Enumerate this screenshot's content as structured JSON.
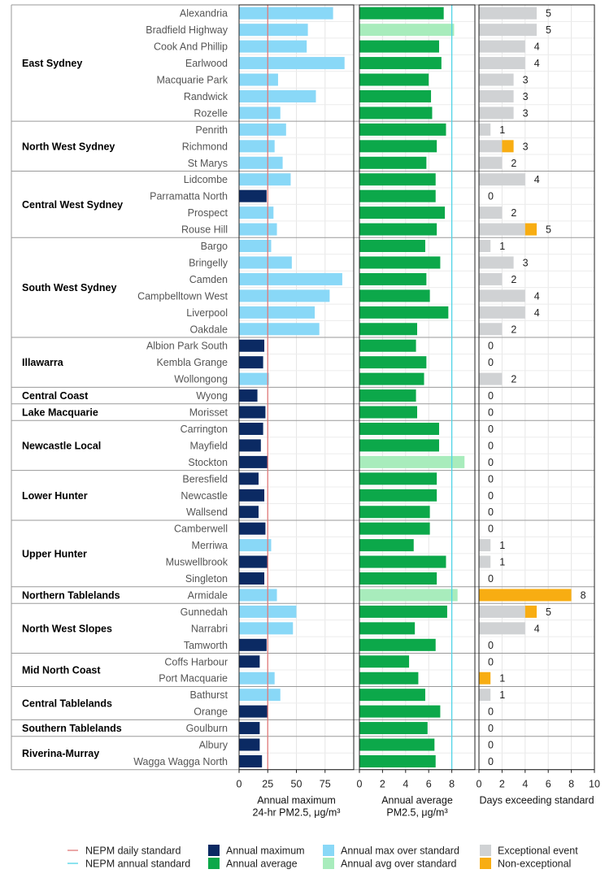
{
  "chart_data": {
    "type": "bar",
    "colors": {
      "annual_max": "#0b2a63",
      "annual_max_over": "#89d8f7",
      "annual_avg": "#0ca84a",
      "annual_avg_over": "#a8ecbc",
      "exceptional": "#d0d2d4",
      "non_exceptional": "#f8ad12",
      "daily_std_line": "#e07a7a",
      "annual_std_line": "#4fd4e6"
    },
    "regions": [
      {
        "name": "East Sydney",
        "stations": [
          "Alexandria",
          "Bradfield Highway",
          "Cook And Phillip",
          "Earlwood",
          "Macquarie Park",
          "Randwick",
          "Rozelle"
        ]
      },
      {
        "name": "North West Sydney",
        "stations": [
          "Penrith",
          "Richmond",
          "St Marys"
        ]
      },
      {
        "name": "Central West Sydney",
        "stations": [
          "Lidcombe",
          "Parramatta North",
          "Prospect",
          "Rouse Hill"
        ]
      },
      {
        "name": "South West Sydney",
        "stations": [
          "Bargo",
          "Bringelly",
          "Camden",
          "Campbelltown West",
          "Liverpool",
          "Oakdale"
        ]
      },
      {
        "name": "Illawarra",
        "stations": [
          "Albion Park South",
          "Kembla Grange",
          "Wollongong"
        ]
      },
      {
        "name": "Central Coast",
        "stations": [
          "Wyong"
        ]
      },
      {
        "name": "Lake Macquarie",
        "stations": [
          "Morisset"
        ]
      },
      {
        "name": "Newcastle Local",
        "stations": [
          "Carrington",
          "Mayfield",
          "Stockton"
        ]
      },
      {
        "name": "Lower Hunter",
        "stations": [
          "Beresfield",
          "Newcastle",
          "Wallsend"
        ]
      },
      {
        "name": "Upper Hunter",
        "stations": [
          "Camberwell",
          "Merriwa",
          "Muswellbrook",
          "Singleton"
        ]
      },
      {
        "name": "Northern Tablelands",
        "stations": [
          "Armidale"
        ]
      },
      {
        "name": "North West Slopes",
        "stations": [
          "Gunnedah",
          "Narrabri",
          "Tamworth"
        ]
      },
      {
        "name": "Mid North Coast",
        "stations": [
          "Coffs Harbour",
          "Port Macquarie"
        ]
      },
      {
        "name": "Central Tablelands",
        "stations": [
          "Bathurst",
          "Orange"
        ]
      },
      {
        "name": "Southern Tablelands",
        "stations": [
          "Goulburn"
        ]
      },
      {
        "name": "Riverina-Murray",
        "stations": [
          "Albury",
          "Wagga Wagga North"
        ]
      }
    ],
    "panels": [
      {
        "xlabel_line1": "Annual maximum",
        "xlabel_line2": "24-hr PM2.5, μg/m³",
        "xlim": [
          0,
          100
        ],
        "ticks": [
          0,
          25,
          50,
          75
        ],
        "standard": 25,
        "values": [
          82,
          60,
          59,
          92,
          34,
          67,
          36,
          41,
          31,
          38,
          45,
          24,
          30,
          33,
          28,
          46,
          90,
          79,
          66,
          70,
          22,
          21,
          26,
          16,
          23,
          21,
          19,
          25,
          17,
          22,
          17,
          23,
          28,
          25,
          22,
          33,
          50,
          47,
          24,
          18,
          31,
          36,
          25,
          18,
          18,
          20
        ]
      },
      {
        "xlabel_line1": "Annual average",
        "xlabel_line2": "PM2.5, μg/m³",
        "xlim": [
          0,
          10
        ],
        "ticks": [
          0,
          2,
          4,
          6,
          8
        ],
        "standard": 8,
        "values": [
          7.3,
          8.2,
          6.9,
          7.1,
          6.0,
          6.2,
          6.3,
          7.5,
          6.7,
          5.8,
          6.6,
          6.6,
          7.4,
          6.7,
          5.7,
          7.0,
          5.8,
          6.1,
          7.7,
          5.0,
          4.9,
          5.8,
          5.6,
          4.9,
          5.0,
          6.9,
          6.9,
          9.1,
          6.7,
          6.7,
          6.1,
          6.1,
          4.7,
          7.5,
          6.7,
          8.5,
          7.6,
          4.8,
          6.6,
          4.3,
          5.1,
          5.7,
          7.0,
          5.9,
          6.5,
          6.6
        ]
      },
      {
        "xlabel_line1": "Days exceeding standard",
        "xlim": [
          0,
          10
        ],
        "ticks": [
          0,
          2,
          4,
          6,
          8,
          10
        ],
        "exceptional": [
          5,
          5,
          4,
          4,
          3,
          3,
          3,
          1,
          2,
          2,
          4,
          0,
          2,
          4,
          1,
          3,
          2,
          4,
          4,
          2,
          0,
          0,
          2,
          0,
          0,
          0,
          0,
          0,
          0,
          0,
          0,
          0,
          1,
          1,
          0,
          0,
          4,
          4,
          0,
          0,
          0,
          1,
          0,
          0,
          0,
          0
        ],
        "non_exceptional": [
          0,
          0,
          0,
          0,
          0,
          0,
          0,
          0,
          1,
          0,
          0,
          0,
          0,
          1,
          0,
          0,
          0,
          0,
          0,
          0,
          0,
          0,
          0,
          0,
          0,
          0,
          0,
          0,
          0,
          0,
          0,
          0,
          0,
          0,
          0,
          8,
          1,
          0,
          0,
          0,
          1,
          0,
          0,
          0,
          0,
          0
        ]
      }
    ],
    "legend": [
      {
        "label": "NEPM daily standard",
        "kind": "line",
        "color_key": "daily_std_line"
      },
      {
        "label": "NEPM annual standard",
        "kind": "line",
        "color_key": "annual_std_line"
      },
      {
        "label": "Annual maximum",
        "kind": "box",
        "color_key": "annual_max"
      },
      {
        "label": "Annual average",
        "kind": "box",
        "color_key": "annual_avg"
      },
      {
        "label": "Annual max over standard",
        "kind": "box",
        "color_key": "annual_max_over"
      },
      {
        "label": "Annual avg over standard",
        "kind": "box",
        "color_key": "annual_avg_over"
      },
      {
        "label": "Exceptional event",
        "kind": "box",
        "color_key": "exceptional"
      },
      {
        "label": "Non-exceptional",
        "kind": "box",
        "color_key": "non_exceptional"
      }
    ]
  }
}
